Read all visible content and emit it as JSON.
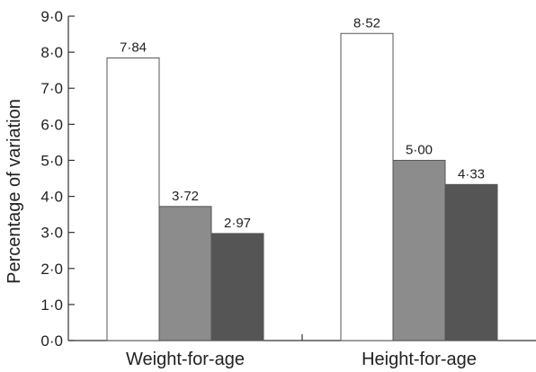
{
  "chart_data": {
    "type": "bar",
    "title": "",
    "xlabel": "",
    "ylabel": "Percentage of variation",
    "ylim": [
      0,
      9
    ],
    "yticks": [
      "0·0",
      "1·0",
      "2·0",
      "3·0",
      "4·0",
      "5·0",
      "6·0",
      "7·0",
      "8·0",
      "9·0"
    ],
    "categories": [
      "Weight-for-age",
      "Height-for-age"
    ],
    "series": [
      {
        "values": [
          7.84,
          8.52
        ],
        "labels": [
          "7·84",
          "8·52"
        ],
        "color": "#ffffff"
      },
      {
        "values": [
          3.72,
          5.0
        ],
        "labels": [
          "3·72",
          "5·00"
        ],
        "color": "#8c8c8c"
      },
      {
        "values": [
          2.97,
          4.33
        ],
        "labels": [
          "2·97",
          "4·33"
        ],
        "color": "#555555"
      }
    ],
    "grid": false,
    "legend": "none"
  }
}
